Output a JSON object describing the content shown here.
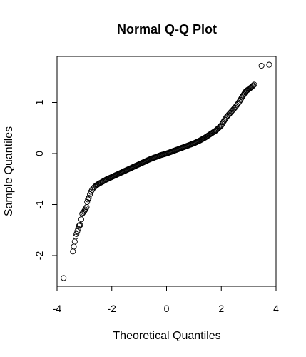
{
  "chart_data": {
    "type": "scatter",
    "title": "Normal Q-Q Plot",
    "xlabel": "Theoretical Quantiles",
    "ylabel": "Sample Quantiles",
    "xlim": [
      -4,
      4
    ],
    "ylim": [
      -2.5,
      1.9
    ],
    "xticks": [
      -4,
      -2,
      0,
      2,
      4
    ],
    "yticks": [
      -2,
      -1,
      0,
      1
    ],
    "xtick_labels": [
      "-4",
      "-2",
      "0",
      "2",
      "4"
    ],
    "ytick_labels": [
      "-2",
      "-1",
      "0",
      "1"
    ],
    "grid": false,
    "legend": "none",
    "marker": "open-circle",
    "x": [
      -3.76,
      -3.42,
      -3.32,
      -3.2,
      -3.15,
      -3.08,
      -3.02,
      -2.97,
      -2.92,
      -2.9,
      -2.87,
      -2.84,
      -2.8,
      -2.76,
      -2.72,
      -2.68,
      -2.64,
      -2.6,
      -2.55,
      -2.5,
      -2.4,
      -2.3,
      -2.2,
      -2.0,
      -1.8,
      -1.6,
      -1.4,
      -1.2,
      -1.0,
      -0.8,
      -0.6,
      -0.4,
      -0.2,
      0.0,
      0.2,
      0.4,
      0.6,
      0.8,
      1.0,
      1.2,
      1.4,
      1.6,
      1.8,
      2.0,
      2.1,
      2.2,
      2.3,
      2.4,
      2.5,
      2.6,
      2.7,
      2.75,
      2.8,
      2.85,
      2.9,
      2.95,
      3.0,
      3.05,
      3.1,
      3.2,
      3.47,
      3.75
    ],
    "y": [
      -2.44,
      -1.92,
      -1.63,
      -1.42,
      -1.4,
      -1.18,
      -1.14,
      -1.1,
      -1.05,
      -0.95,
      -0.9,
      -0.87,
      -0.8,
      -0.75,
      -0.71,
      -0.68,
      -0.66,
      -0.64,
      -0.62,
      -0.6,
      -0.57,
      -0.54,
      -0.51,
      -0.46,
      -0.41,
      -0.36,
      -0.31,
      -0.26,
      -0.21,
      -0.16,
      -0.11,
      -0.07,
      -0.03,
      0.0,
      0.04,
      0.08,
      0.12,
      0.16,
      0.2,
      0.25,
      0.31,
      0.38,
      0.45,
      0.55,
      0.64,
      0.72,
      0.78,
      0.84,
      0.9,
      0.97,
      1.05,
      1.1,
      1.14,
      1.18,
      1.22,
      1.24,
      1.26,
      1.28,
      1.3,
      1.35,
      1.72,
      1.74
    ]
  }
}
